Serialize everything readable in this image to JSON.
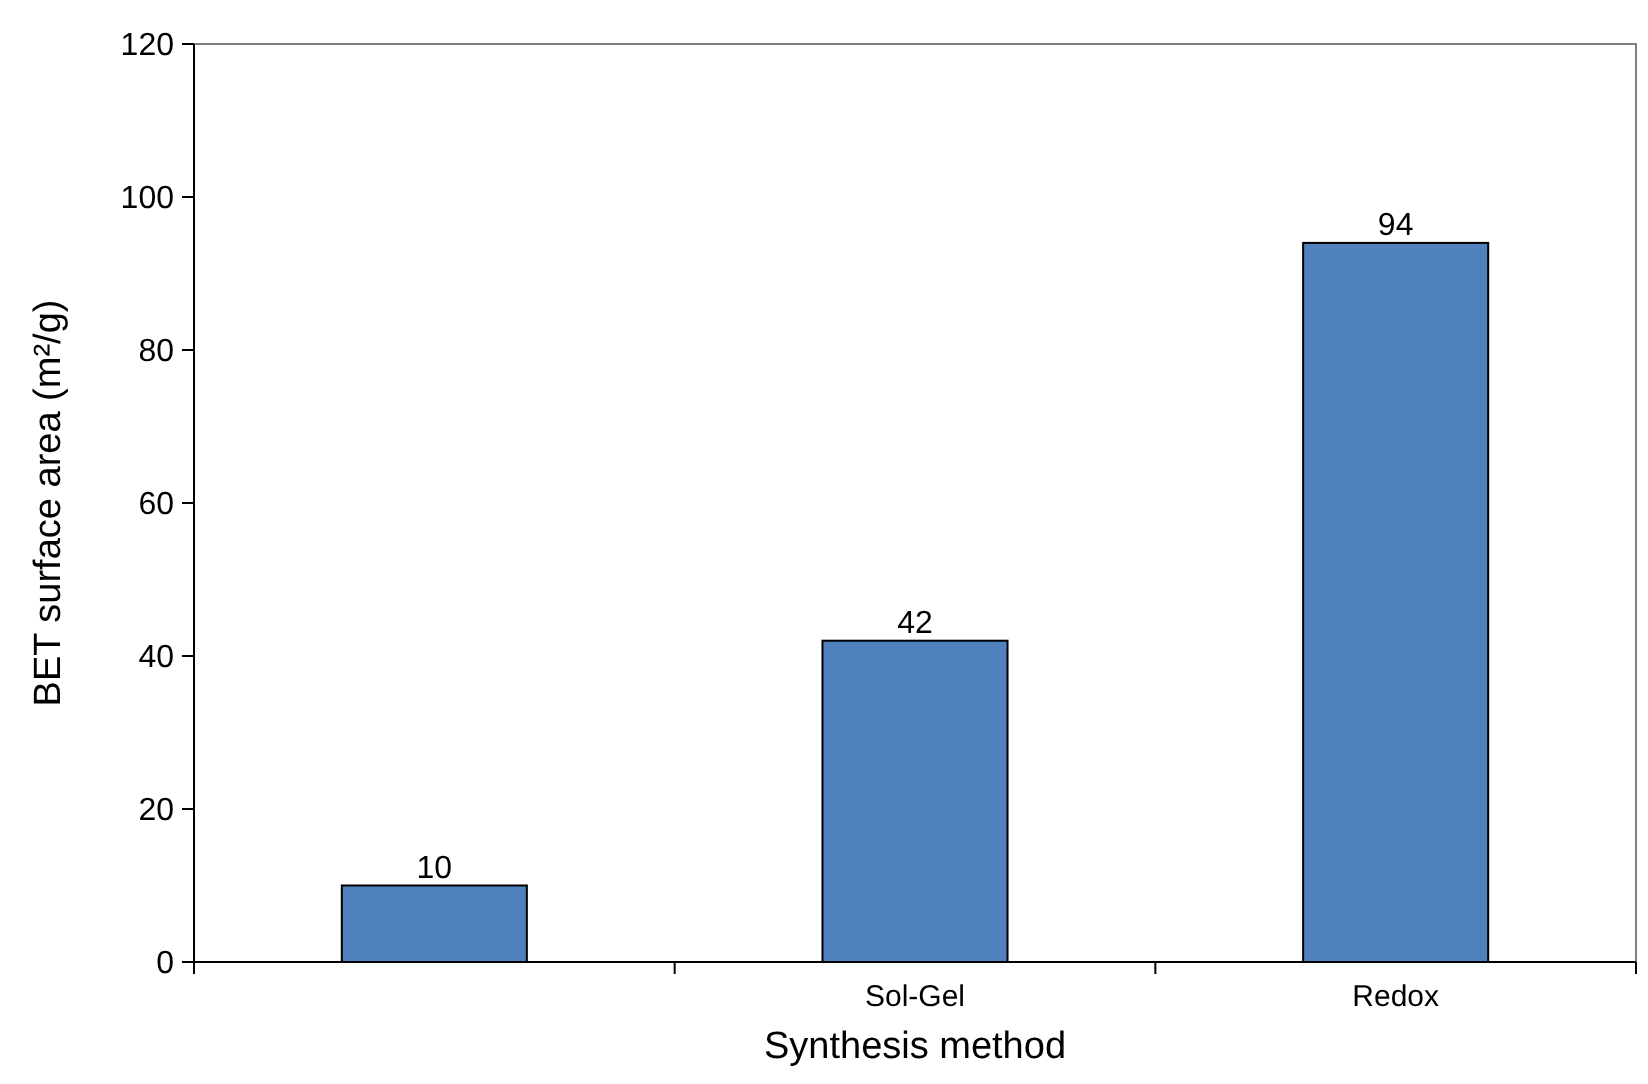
{
  "chart_data": {
    "type": "bar",
    "xlabel": "Synthesis method",
    "ylabel": "BET surface area (m²/g)",
    "categories": [
      null,
      "Sol-Gel",
      "Redox"
    ],
    "values": [
      10,
      42,
      94
    ],
    "color": "#4f81bd",
    "data_labels": true,
    "ylim": [
      0,
      120
    ],
    "yticks": [
      0,
      20,
      40,
      60,
      80,
      100,
      120
    ],
    "grid": false
  }
}
